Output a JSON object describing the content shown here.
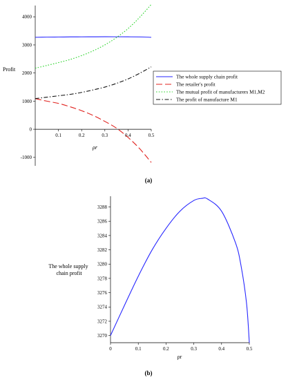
{
  "chart_data": [
    {
      "panel": "(a)",
      "type": "line",
      "xlabel": "ρr",
      "ylabel": "Profit",
      "xlim": [
        0,
        0.5
      ],
      "ylim": [
        -1300,
        4400
      ],
      "x_ticks": [
        "0.1",
        "0.2",
        "0.3",
        "0.4",
        "0.5"
      ],
      "x_tick_values": [
        0.1,
        0.2,
        0.3,
        0.4,
        0.5
      ],
      "y_ticks": [
        "-1000",
        "0",
        "1000",
        "2000",
        "3000",
        "4000"
      ],
      "y_tick_values": [
        -1000,
        0,
        1000,
        2000,
        3000,
        4000
      ],
      "x": [
        0,
        0.05,
        0.1,
        0.15,
        0.2,
        0.25,
        0.3,
        0.35,
        0.4,
        0.45,
        0.5
      ],
      "series": [
        {
          "name": "The whole supply chain profit",
          "color": "#2626ff",
          "style": "solid",
          "values": [
            3270,
            3276,
            3279,
            3283,
            3285,
            3287,
            3289,
            3288,
            3286,
            3282,
            3270
          ]
        },
        {
          "name": "The retailer's  profit",
          "color": "#e0201c",
          "style": "longdash",
          "values": [
            1090,
            1000,
            920,
            800,
            660,
            490,
            280,
            40,
            -290,
            -690,
            -1180
          ]
        },
        {
          "name": "The mutual profit of manufacturers M1,M2",
          "color": "#2bd42b",
          "style": "dotted",
          "values": [
            2170,
            2270,
            2370,
            2480,
            2620,
            2790,
            3000,
            3260,
            3580,
            3980,
            4440
          ]
        },
        {
          "name": "The profit of manufacture M1",
          "color": "#111111",
          "style": "dashdot",
          "values": [
            1090,
            1140,
            1190,
            1240,
            1310,
            1400,
            1500,
            1630,
            1790,
            1990,
            2220
          ]
        }
      ]
    },
    {
      "panel": "(b)",
      "type": "line",
      "xlabel": "ρr",
      "ylabel": "The whole supply chain profit",
      "xlim": [
        0,
        0.5
      ],
      "ylim": [
        3269,
        3289.5
      ],
      "x_ticks": [
        "0",
        "0.1",
        "0.2",
        "0.3",
        "0.4",
        "0.5"
      ],
      "x_tick_values": [
        0,
        0.1,
        0.2,
        0.3,
        0.4,
        0.5
      ],
      "y_ticks": [
        "3270",
        "3272",
        "3274",
        "3276",
        "3278",
        "3280",
        "3282",
        "3284",
        "3286",
        "3288"
      ],
      "y_tick_values": [
        3270,
        3272,
        3274,
        3276,
        3278,
        3280,
        3282,
        3284,
        3286,
        3288
      ],
      "x": [
        0,
        0.05,
        0.1,
        0.15,
        0.2,
        0.25,
        0.3,
        0.33,
        0.35,
        0.4,
        0.45,
        0.47,
        0.49,
        0.5
      ],
      "series": [
        {
          "color": "#2626ff",
          "style": "solid",
          "values": [
            3270,
            3274.2,
            3278.3,
            3282.0,
            3285.0,
            3287.4,
            3288.9,
            3289.2,
            3289.1,
            3287.4,
            3283.0,
            3279.8,
            3274.5,
            3269
          ]
        }
      ]
    }
  ],
  "captions": {
    "a": "(a)",
    "b": "(b)"
  },
  "ylabel_b_lines": [
    "The whole supply",
    "chain profit"
  ]
}
